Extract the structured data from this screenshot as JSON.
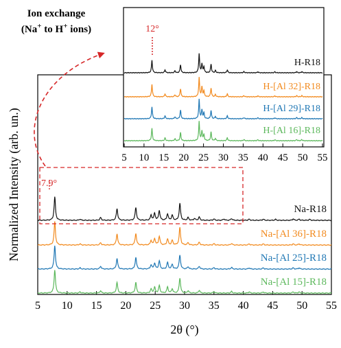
{
  "annotation": {
    "line1": "Ion exchange",
    "line2_prefix": "(Na",
    "sup_plus_1": "+",
    "line2_mid": " to H",
    "sup_plus_2": "+",
    "line2_suffix": " ions)",
    "peak_main": "7.9°",
    "peak_inset": "12°"
  },
  "colors": {
    "black": "#111111",
    "orange": "#f28a1e",
    "blue": "#1f77b4",
    "green": "#5cb85c",
    "red": "#d62728"
  },
  "chart_data": [
    {
      "type": "line",
      "xlabel": "2θ (°)",
      "ylabel": "Normalized Intensity (arb. un.)",
      "xlim": [
        5,
        55
      ],
      "xticks": [
        5,
        10,
        15,
        20,
        25,
        30,
        35,
        40,
        45,
        50,
        55
      ],
      "xtick_labels": [
        "5",
        "10",
        "15",
        "20",
        "25",
        "30",
        "35",
        "40",
        "45",
        "50",
        "55"
      ],
      "series": [
        {
          "name": "Na-R18",
          "color": "#111111",
          "peaks": [
            [
              7.9,
              1.0
            ],
            [
              12.2,
              0.05
            ],
            [
              15.7,
              0.12
            ],
            [
              18.5,
              0.5
            ],
            [
              21.7,
              0.55
            ],
            [
              24.3,
              0.22
            ],
            [
              24.9,
              0.3
            ],
            [
              25.7,
              0.42
            ],
            [
              27.1,
              0.28
            ],
            [
              27.9,
              0.22
            ],
            [
              29.2,
              0.72
            ],
            [
              30.6,
              0.12
            ],
            [
              31.7,
              0.08
            ],
            [
              32.5,
              0.14
            ],
            [
              35.0,
              0.06
            ],
            [
              36.7,
              0.06
            ],
            [
              38.0,
              0.08
            ],
            [
              41.0,
              0.05
            ],
            [
              43.4,
              0.05
            ],
            [
              45.5,
              0.04
            ],
            [
              48.5,
              0.06
            ],
            [
              49.5,
              0.05
            ],
            [
              51.3,
              0.04
            ]
          ]
        },
        {
          "name": "Na-[Al 36]-R18",
          "color": "#f28a1e",
          "peaks": [
            [
              7.9,
              1.0
            ],
            [
              12.2,
              0.05
            ],
            [
              15.7,
              0.1
            ],
            [
              18.5,
              0.48
            ],
            [
              21.7,
              0.5
            ],
            [
              24.3,
              0.2
            ],
            [
              24.9,
              0.28
            ],
            [
              25.7,
              0.38
            ],
            [
              27.1,
              0.26
            ],
            [
              27.9,
              0.2
            ],
            [
              29.2,
              0.75
            ],
            [
              30.6,
              0.1
            ],
            [
              32.5,
              0.12
            ],
            [
              35.0,
              0.06
            ],
            [
              38.0,
              0.07
            ],
            [
              41.0,
              0.05
            ],
            [
              43.4,
              0.05
            ],
            [
              48.5,
              0.05
            ],
            [
              49.5,
              0.05
            ]
          ]
        },
        {
          "name": "Na-[Al 25]-R18",
          "color": "#1f77b4",
          "peaks": [
            [
              7.9,
              1.0
            ],
            [
              12.2,
              0.05
            ],
            [
              15.7,
              0.12
            ],
            [
              18.5,
              0.45
            ],
            [
              21.7,
              0.5
            ],
            [
              24.3,
              0.18
            ],
            [
              24.9,
              0.25
            ],
            [
              25.7,
              0.35
            ],
            [
              27.1,
              0.28
            ],
            [
              27.9,
              0.2
            ],
            [
              29.2,
              0.6
            ],
            [
              30.6,
              0.1
            ],
            [
              32.5,
              0.12
            ],
            [
              35.0,
              0.06
            ],
            [
              38.0,
              0.07
            ],
            [
              41.0,
              0.05
            ],
            [
              43.4,
              0.05
            ],
            [
              48.5,
              0.05
            ],
            [
              49.5,
              0.05
            ]
          ]
        },
        {
          "name": "Na-[Al 15]-R18",
          "color": "#5cb85c",
          "peaks": [
            [
              7.9,
              1.0
            ],
            [
              12.2,
              0.05
            ],
            [
              15.7,
              0.1
            ],
            [
              18.5,
              0.45
            ],
            [
              21.7,
              0.45
            ],
            [
              24.3,
              0.18
            ],
            [
              24.9,
              0.25
            ],
            [
              25.7,
              0.32
            ],
            [
              27.1,
              0.26
            ],
            [
              27.9,
              0.18
            ],
            [
              29.2,
              0.65
            ],
            [
              30.6,
              0.1
            ],
            [
              32.5,
              0.12
            ],
            [
              35.0,
              0.06
            ],
            [
              38.0,
              0.07
            ],
            [
              41.0,
              0.05
            ],
            [
              43.4,
              0.05
            ],
            [
              48.5,
              0.05
            ],
            [
              49.5,
              0.05
            ]
          ]
        }
      ]
    },
    {
      "type": "line",
      "xlabel": "",
      "ylabel": "",
      "xlim": [
        5,
        55
      ],
      "xticks": [
        5,
        10,
        15,
        20,
        25,
        30,
        35,
        40,
        45,
        50,
        55
      ],
      "xtick_labels": [
        "5",
        "10",
        "15",
        "20",
        "25",
        "30",
        "35",
        "40",
        "45",
        "50",
        "55"
      ],
      "series": [
        {
          "name": "H-R18",
          "color": "#111111",
          "peaks": [
            [
              12.0,
              0.65
            ],
            [
              15.3,
              0.15
            ],
            [
              17.8,
              0.1
            ],
            [
              19.2,
              0.42
            ],
            [
              23.9,
              1.0
            ],
            [
              24.6,
              0.45
            ],
            [
              25.1,
              0.3
            ],
            [
              26.9,
              0.45
            ],
            [
              28.0,
              0.12
            ],
            [
              31.0,
              0.15
            ],
            [
              35.2,
              0.06
            ],
            [
              38.7,
              0.05
            ],
            [
              43.0,
              0.05
            ],
            [
              48.5,
              0.06
            ],
            [
              49.8,
              0.06
            ]
          ]
        },
        {
          "name": "H-[Al 32]-R18",
          "color": "#f28a1e",
          "peaks": [
            [
              12.0,
              0.65
            ],
            [
              15.3,
              0.15
            ],
            [
              17.8,
              0.1
            ],
            [
              19.2,
              0.42
            ],
            [
              23.9,
              1.0
            ],
            [
              24.6,
              0.5
            ],
            [
              25.1,
              0.3
            ],
            [
              26.9,
              0.45
            ],
            [
              28.0,
              0.12
            ],
            [
              31.0,
              0.15
            ],
            [
              35.2,
              0.06
            ],
            [
              38.7,
              0.05
            ],
            [
              43.0,
              0.05
            ],
            [
              48.5,
              0.06
            ],
            [
              49.8,
              0.06
            ]
          ]
        },
        {
          "name": "H-[Al 29]-R18",
          "color": "#1f77b4",
          "peaks": [
            [
              12.0,
              0.62
            ],
            [
              15.3,
              0.15
            ],
            [
              17.8,
              0.1
            ],
            [
              19.2,
              0.45
            ],
            [
              23.9,
              1.0
            ],
            [
              24.6,
              0.45
            ],
            [
              25.1,
              0.3
            ],
            [
              26.9,
              0.42
            ],
            [
              28.0,
              0.12
            ],
            [
              31.0,
              0.15
            ],
            [
              35.2,
              0.06
            ],
            [
              38.7,
              0.05
            ],
            [
              43.0,
              0.05
            ],
            [
              48.5,
              0.06
            ],
            [
              49.8,
              0.06
            ]
          ]
        },
        {
          "name": "H-[Al 16]-R18",
          "color": "#5cb85c",
          "peaks": [
            [
              12.0,
              0.65
            ],
            [
              15.3,
              0.15
            ],
            [
              17.8,
              0.1
            ],
            [
              19.2,
              0.42
            ],
            [
              23.9,
              1.0
            ],
            [
              24.6,
              0.5
            ],
            [
              25.1,
              0.3
            ],
            [
              26.9,
              0.45
            ],
            [
              28.0,
              0.12
            ],
            [
              31.0,
              0.15
            ],
            [
              35.2,
              0.06
            ],
            [
              38.7,
              0.05
            ],
            [
              43.0,
              0.05
            ],
            [
              48.5,
              0.06
            ],
            [
              49.8,
              0.06
            ]
          ]
        }
      ]
    }
  ]
}
